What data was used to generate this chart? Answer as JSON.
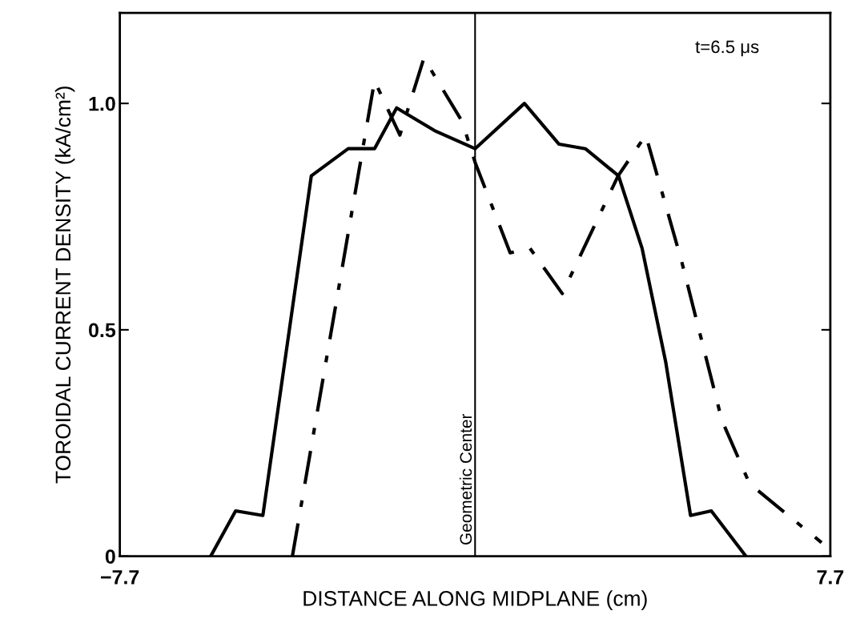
{
  "chart_data": {
    "type": "line",
    "xlabel": "DISTANCE ALONG MIDPLANE (cm)",
    "ylabel": "TOROIDAL CURRENT DENSITY (kA/cm²)",
    "annotations": [
      "t=6.5 μs"
    ],
    "xlim": [
      -7.7,
      7.7
    ],
    "xticks": [
      {
        "value": -7.7,
        "label": "−7.7"
      },
      7.7
    ],
    "ylim": [
      0,
      1.2
    ],
    "yticks": [
      0,
      0.5,
      {
        "value": 1.0,
        "label": "1.0"
      }
    ],
    "grid": false,
    "marker": "none",
    "ref_lines": [
      {
        "axis": "x",
        "value": 0,
        "label": "Geometric Center",
        "color": "#000000",
        "line_style": "solid"
      }
    ],
    "series": [
      {
        "color": "#000000",
        "line_style": "solid",
        "x": [
          -5.73,
          -5.19,
          -4.6,
          -3.55,
          -2.75,
          -2.18,
          -1.7,
          -0.88,
          0,
          1.07,
          1.82,
          2.39,
          3.11,
          3.62,
          4.13,
          4.67,
          5.12,
          5.87
        ],
        "values": [
          0,
          0.1,
          0.09,
          0.84,
          0.9,
          0.9,
          0.99,
          0.94,
          0.9,
          1.0,
          0.91,
          0.9,
          0.84,
          0.68,
          0.43,
          0.09,
          0.1,
          0
        ]
      },
      {
        "color": "#000000",
        "line_style": "dashdot",
        "x": [
          -3.96,
          -2.18,
          -1.63,
          -1.11,
          -0.28,
          0,
          0.76,
          1.19,
          1.89,
          3.1,
          3.7,
          4.48,
          5.35,
          5.95,
          7.51
        ],
        "values": [
          0,
          1.05,
          0.93,
          1.1,
          0.96,
          0.87,
          0.67,
          0.68,
          0.58,
          0.84,
          0.93,
          0.65,
          0.3,
          0.16,
          0.03
        ]
      }
    ]
  }
}
